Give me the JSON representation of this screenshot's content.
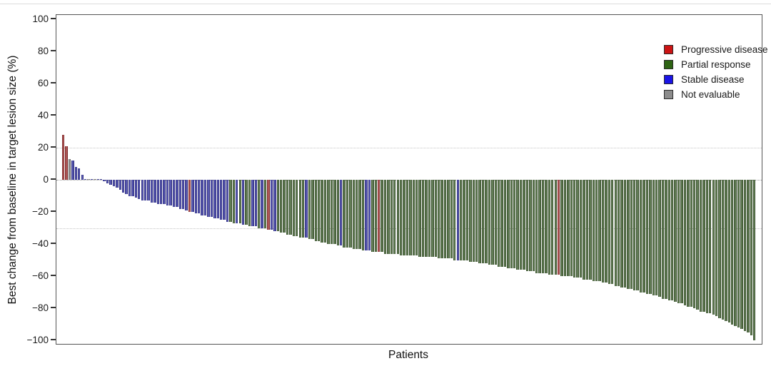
{
  "figure": {
    "x_axis_title": "Patients",
    "y_axis_title": "Best change from baseline in target lesion size (%)"
  },
  "chart_data": {
    "type": "bar",
    "subtype": "waterfall",
    "title": "",
    "xlabel": "Patients",
    "ylabel": "Best change from baseline in target lesion size (%)",
    "ylim": [
      -100,
      100
    ],
    "grid": false,
    "legend_position": "top-right-inside",
    "yticks": [
      {
        "value": 100,
        "label": "100"
      },
      {
        "value": 80,
        "label": "80"
      },
      {
        "value": 60,
        "label": "60"
      },
      {
        "value": 40,
        "label": "40"
      },
      {
        "value": 20,
        "label": "20"
      },
      {
        "value": 0,
        "label": "0"
      },
      {
        "value": -20,
        "label": "−20"
      },
      {
        "value": -40,
        "label": "−40"
      },
      {
        "value": -60,
        "label": "−60"
      },
      {
        "value": -80,
        "label": "−80"
      },
      {
        "value": -100,
        "label": "−100"
      }
    ],
    "reference_lines": [
      {
        "value": 20,
        "style": "dotted"
      },
      {
        "value": -30,
        "style": "dotted"
      }
    ],
    "legend": [
      {
        "code": "p",
        "label": "Progressive disease",
        "color": "#cc1414"
      },
      {
        "code": "g",
        "label": "Partial response",
        "color": "#2e6414"
      },
      {
        "code": "s",
        "label": "Stable disease",
        "color": "#1a14e6"
      },
      {
        "code": "n",
        "label": "Not evaluable",
        "color": "#8c8c8c"
      }
    ],
    "bar_fill_colors": {
      "p": "#b02828",
      "g": "#3c6428",
      "s": "#2e2eb4",
      "n": "#868686"
    },
    "values": [
      28,
      21,
      13,
      12,
      8,
      7,
      3,
      0,
      0,
      0,
      0,
      0,
      0,
      -1,
      -2,
      -3,
      -4,
      -5,
      -6,
      -8,
      -9,
      -10,
      -10,
      -11,
      -12,
      -13,
      -13,
      -13,
      -14,
      -14,
      -15,
      -15,
      -15,
      -16,
      -16,
      -17,
      -17,
      -18,
      -18,
      -19,
      -20,
      -20,
      -21,
      -21,
      -22,
      -22,
      -23,
      -23,
      -24,
      -24,
      -25,
      -25,
      -26,
      -26,
      -27,
      -27,
      -27,
      -28,
      -28,
      -29,
      -29,
      -29,
      -30,
      -30,
      -30,
      -31,
      -31,
      -32,
      -32,
      -33,
      -33,
      -34,
      -34,
      -35,
      -35,
      -36,
      -36,
      -36,
      -37,
      -37,
      -38,
      -38,
      -39,
      -39,
      -40,
      -40,
      -40,
      -41,
      -41,
      -42,
      -42,
      -42,
      -43,
      -43,
      -43,
      -44,
      -44,
      -44,
      -45,
      -45,
      -45,
      -45,
      -46,
      -46,
      -46,
      -46,
      -46,
      -47,
      -47,
      -47,
      -47,
      -47,
      -47,
      -48,
      -48,
      -48,
      -48,
      -48,
      -48,
      -49,
      -49,
      -49,
      -49,
      -49,
      -50,
      -50,
      -50,
      -50,
      -50,
      -51,
      -51,
      -51,
      -52,
      -52,
      -52,
      -53,
      -53,
      -53,
      -54,
      -54,
      -54,
      -55,
      -55,
      -55,
      -56,
      -56,
      -56,
      -57,
      -57,
      -57,
      -58,
      -58,
      -58,
      -58,
      -59,
      -59,
      -59,
      -59,
      -60,
      -60,
      -60,
      -60,
      -61,
      -61,
      -61,
      -62,
      -62,
      -62,
      -63,
      -63,
      -63,
      -64,
      -64,
      -65,
      -65,
      -66,
      -66,
      -67,
      -67,
      -68,
      -68,
      -69,
      -69,
      -70,
      -70,
      -71,
      -71,
      -72,
      -72,
      -73,
      -74,
      -74,
      -75,
      -75,
      -76,
      -77,
      -77,
      -78,
      -79,
      -79,
      -80,
      -81,
      -82,
      -82,
      -83,
      -83,
      -84,
      -85,
      -86,
      -87,
      -88,
      -89,
      -90,
      -91,
      -92,
      -93,
      -94,
      -95,
      -97,
      -100
    ],
    "color_codes_rle": [
      [
        "p",
        2
      ],
      [
        "n",
        1
      ],
      [
        "s",
        5
      ],
      [
        "n",
        1
      ],
      [
        "s",
        1
      ],
      [
        "n",
        1
      ],
      [
        "s",
        2
      ],
      [
        "s",
        27
      ],
      [
        "p",
        1
      ],
      [
        "s",
        10
      ],
      [
        "s",
        2
      ],
      [
        "g",
        2
      ],
      [
        "s",
        1
      ],
      [
        "g",
        1
      ],
      [
        "s",
        1
      ],
      [
        "g",
        2
      ],
      [
        "s",
        2
      ],
      [
        "g",
        1
      ],
      [
        "s",
        1
      ],
      [
        "g",
        1
      ],
      [
        "p",
        1
      ],
      [
        "s",
        2
      ],
      [
        "g",
        1
      ],
      [
        "g",
        8
      ],
      [
        "s",
        1
      ],
      [
        "g",
        10
      ],
      [
        "s",
        1
      ],
      [
        "g",
        7
      ],
      [
        "s",
        2
      ],
      [
        "g",
        2
      ],
      [
        "p",
        1
      ],
      [
        "g",
        24
      ],
      [
        "s",
        1
      ],
      [
        "g",
        31
      ],
      [
        "p",
        1
      ],
      [
        "g",
        62
      ]
    ]
  }
}
